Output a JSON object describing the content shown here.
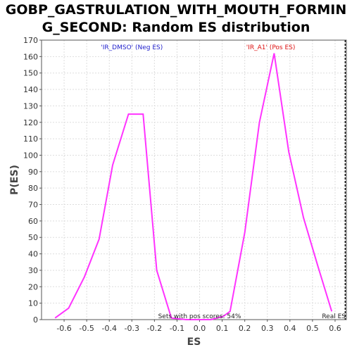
{
  "chart_data": {
    "type": "line",
    "title_line1": "GOBP_GASTRULATION_WITH_MOUTH_FORMIN",
    "title_line2": "G_SECOND: Random ES distribution",
    "xlabel": "ES",
    "ylabel": "P(ES)",
    "xlim": [
      -0.7,
      0.65
    ],
    "ylim": [
      0,
      170
    ],
    "x_ticks": [
      -0.6,
      -0.5,
      -0.4,
      -0.3,
      -0.2,
      -0.1,
      0.0,
      0.1,
      0.2,
      0.3,
      0.4,
      0.5,
      0.6
    ],
    "y_ticks": [
      0,
      10,
      20,
      30,
      40,
      50,
      60,
      70,
      80,
      90,
      100,
      110,
      120,
      130,
      140,
      150,
      160,
      170
    ],
    "grid": true,
    "series": [
      {
        "color": "#ff33ff",
        "points": [
          [
            -0.64,
            1
          ],
          [
            -0.58,
            7
          ],
          [
            -0.51,
            26
          ],
          [
            -0.445,
            49
          ],
          [
            -0.385,
            94
          ],
          [
            -0.315,
            125
          ],
          [
            -0.275,
            125
          ],
          [
            -0.25,
            125
          ],
          [
            -0.19,
            30
          ],
          [
            -0.125,
            1
          ],
          [
            -0.06,
            0
          ],
          [
            0.0,
            0
          ],
          [
            0.05,
            0
          ],
          [
            0.105,
            2
          ],
          [
            0.135,
            5
          ],
          [
            0.2,
            53
          ],
          [
            0.265,
            120
          ],
          [
            0.33,
            162
          ],
          [
            0.395,
            102
          ],
          [
            0.46,
            62
          ],
          [
            0.525,
            32
          ],
          [
            0.585,
            5
          ]
        ]
      }
    ],
    "annotations": {
      "neg_label": "'IR_DMSO' (Neg ES)",
      "neg_color": "#2222cc",
      "pos_label": "'IR_A1' (Pos ES)",
      "pos_color": "#dd1111",
      "pos_scores_text": "Sets with pos scores: 54%",
      "real_es_label": "Real ES",
      "real_es_value": 0.645
    }
  }
}
